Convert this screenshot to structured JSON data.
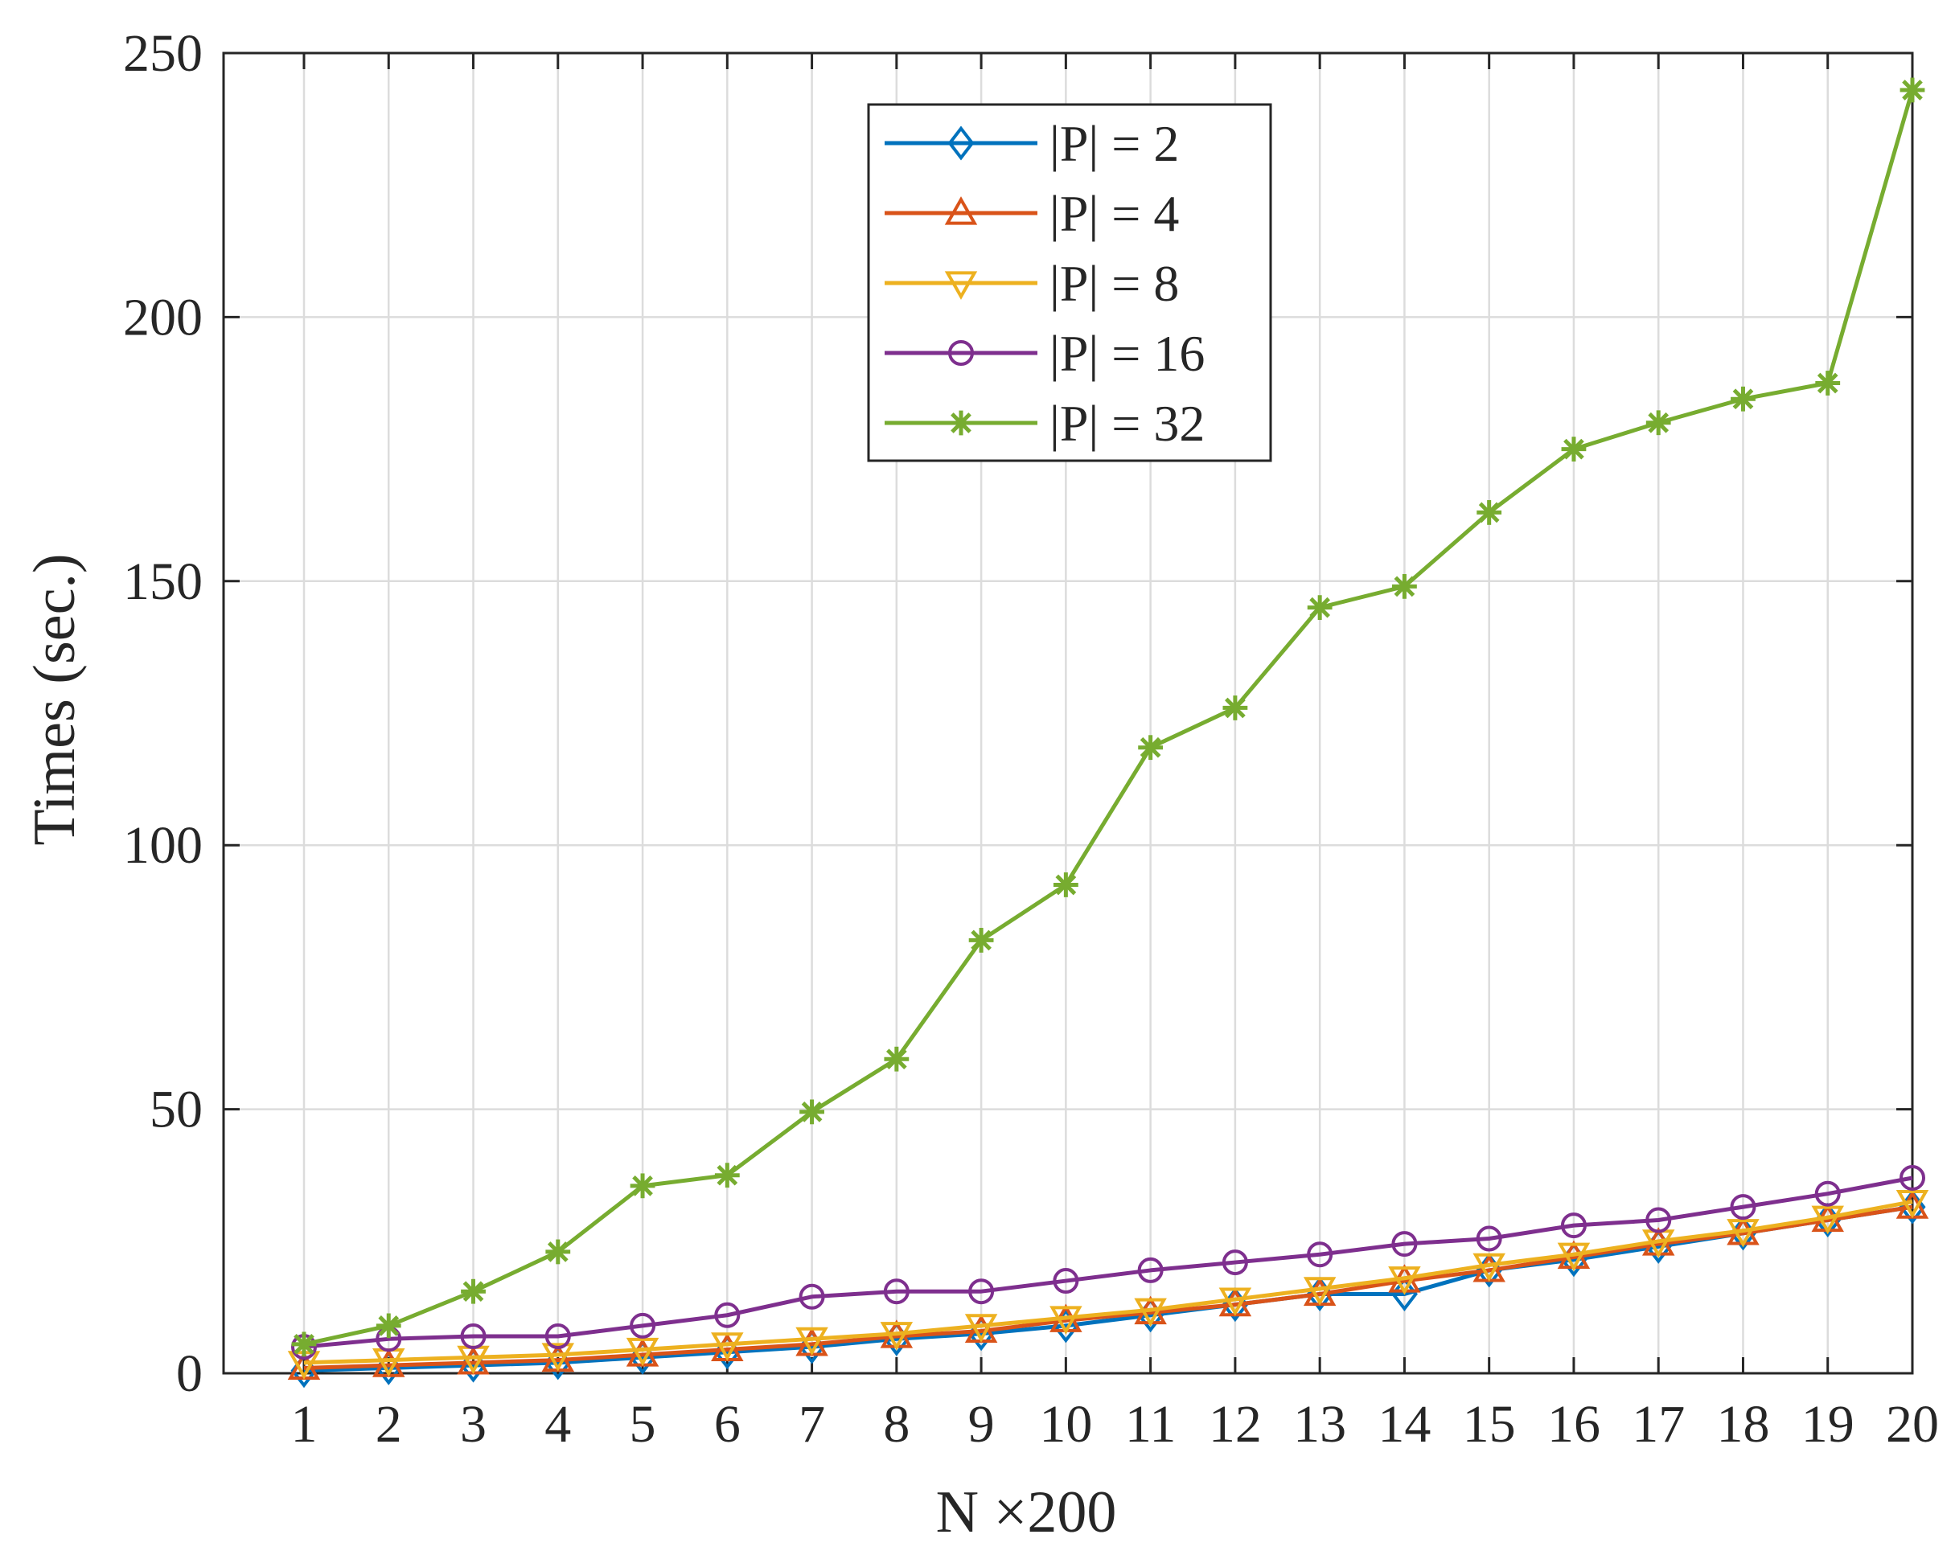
{
  "chart_data": {
    "type": "line",
    "title": "",
    "xlabel": "N ×200",
    "ylabel": "Times (sec.)",
    "x": [
      1,
      2,
      3,
      4,
      5,
      6,
      7,
      8,
      9,
      10,
      11,
      12,
      13,
      14,
      15,
      16,
      17,
      18,
      19,
      20
    ],
    "xlim": [
      0.05,
      20
    ],
    "ylim": [
      0,
      250
    ],
    "xticks": [
      "1",
      "2",
      "3",
      "4",
      "5",
      "6",
      "7",
      "8",
      "9",
      "10",
      "11",
      "12",
      "13",
      "14",
      "15",
      "16",
      "17",
      "18",
      "19",
      "20"
    ],
    "yticks": [
      0,
      50,
      100,
      150,
      200,
      250
    ],
    "ytick_labels": [
      "0",
      "50",
      "100",
      "150",
      "200",
      "250"
    ],
    "grid": true,
    "legend_position": "top-center",
    "series": [
      {
        "name": "|P| = 2",
        "color": "#0072BD",
        "marker": "diamond",
        "values": [
          0.5,
          1.0,
          1.5,
          2.0,
          3.0,
          4.0,
          5.0,
          6.5,
          7.5,
          9.0,
          11.0,
          13.0,
          15.0,
          15.0,
          19.5,
          21.5,
          24.0,
          26.5,
          29.0,
          31.5
        ]
      },
      {
        "name": "|P| = 4",
        "color": "#D95319",
        "marker": "triangle-up",
        "values": [
          1.0,
          1.5,
          2.0,
          2.5,
          3.5,
          4.5,
          5.5,
          7.0,
          8.0,
          10.0,
          11.5,
          13.0,
          15.0,
          17.5,
          19.5,
          22.0,
          24.5,
          26.5,
          29.0,
          31.5
        ]
      },
      {
        "name": "|P| = 8",
        "color": "#EDB120",
        "marker": "triangle-down",
        "values": [
          2.0,
          2.5,
          3.0,
          3.5,
          4.5,
          5.5,
          6.5,
          7.5,
          9.0,
          10.5,
          12.0,
          14.0,
          16.0,
          18.0,
          20.5,
          22.5,
          25.0,
          27.0,
          29.5,
          32.5
        ]
      },
      {
        "name": "|P| = 16",
        "color": "#7E2F8E",
        "marker": "circle",
        "values": [
          5.0,
          6.5,
          7.0,
          7.0,
          9.0,
          11.0,
          14.5,
          15.5,
          15.5,
          17.5,
          19.5,
          21.0,
          22.5,
          24.5,
          25.5,
          28.0,
          29.0,
          31.5,
          34.0,
          37.0
        ]
      },
      {
        "name": "|P| = 32",
        "color": "#77AC30",
        "marker": "asterisk",
        "values": [
          5.5,
          9.0,
          15.5,
          23.0,
          35.5,
          37.5,
          49.5,
          59.5,
          82.0,
          92.5,
          118.5,
          126.0,
          145.0,
          149.0,
          163.0,
          175.0,
          180.0,
          184.5,
          187.5,
          243.0
        ]
      }
    ]
  }
}
